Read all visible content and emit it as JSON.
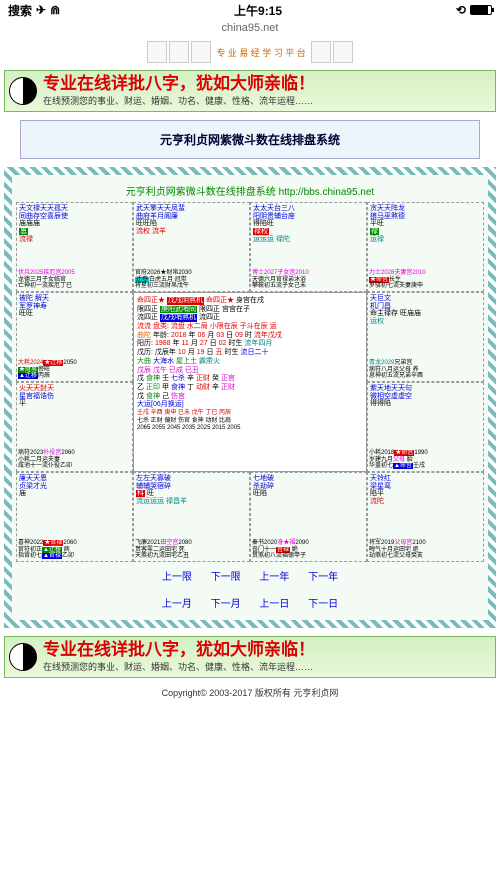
{
  "status": {
    "search": "搜索",
    "time": "上午9:15",
    "airplane": "✈",
    "wifi": "⟟"
  },
  "url": "china95.net",
  "banner": {
    "title": "专业在线详批八字，犹如大师亲临！",
    "sub": "在线预测您的事业、财运、婚姻、功名、健康、性格、流年运程……"
  },
  "strip_label": "专 业 易 经 学 习 平 台",
  "system_title": "元亨利贞网紫微斗数在线排盘系统",
  "chart_header": "元亨利贞网紫微斗数在线排盘系统 http://bbs.china95.net",
  "cells": {
    "p0": {
      "stars": "天文禄天天孤天",
      "s2": "同曲存空喜辰使",
      "s3": "庙庙庙",
      "badge": "恩",
      "tag": "流禄",
      "line": "伏兵2025疾厄宫2005",
      "l2": "龙德三月子女临官",
      "l3": "亡神初一流疾厄丁巳"
    },
    "p1": {
      "stars": "武天擎天天凤蜚",
      "s2": "曲府羊月阁廉",
      "s3": "旺旺陷",
      "tag": "流权 流羊",
      "line": "官府2026★财帛2030",
      "l2": "白虎五月迁夺冠带",
      "l3": "将星初三流财帛戊午"
    },
    "p2": {
      "stars": "太太天台三八",
      "s2": "阳阴贵辅台座",
      "s3": "得陷旺",
      "badge": "禄权",
      "tag": "运运运 禄陀",
      "line": "博士2027子女宫2010",
      "l2": "天德六月官禄弟沐浴",
      "l3": "攀鞍初五流子女己未",
      "land": "身宫▲官禄"
    },
    "p3": {
      "stars": "贪天天阵龙",
      "s2": "狼马巫煞德",
      "s3": "平旺",
      "badge": "禄",
      "tag": "运禄",
      "line": "力士2028夫妻宫2010",
      "l2": "吞客七月★命宫长生",
      "l3": "岁驿初七流夫妻庚申"
    },
    "p4": {
      "stars": "被陀 解天",
      "s2": "军罗神寿",
      "s3": "旺旺",
      "line": "大耗2024★迁移2050",
      "l2": "大耗三月★财帛帝旺",
      "l3": "月煞十二▲迁移丙辰"
    },
    "p5": {
      "stars": "天巨文",
      "s2": "机门昌",
      "s3": "命主禄存 旺庙庙",
      "s4": "身主文昌",
      "tag": "运权",
      "line": "青龙2029兄弟宫",
      "l2": "病符八月运父母 养",
      "l3": "息神初五流兄弟辛酉"
    },
    "p6": {
      "stars": "火天天封天",
      "s2": "星官福诰伤",
      "s3": "平",
      "tag": "大曲 大海水 食神 正官",
      "line": "戊辰 戊午",
      "l2": "乙正印",
      "ext": "戊 食神"
    },
    "p7": {
      "stars": "紫天地天天句",
      "s2": "微相空虚虚空",
      "s3": "得得陷",
      "tag": "屋上土 日主 霹雳火 伤官",
      "line": "已成 已丑",
      "l2": "壬七杀 辛正财 癸正官",
      "l3": "甲食神 丁动财 辛正财",
      "ext": "戊 食神 己 伤官"
    },
    "p8": {
      "stars": "廉天天恩",
      "s2": "贞梁才光",
      "s3": "庙",
      "line": "喜神2022★官禄2060",
      "l2": "官符初正▲迁移 病",
      "l3": "指背初七▲官禄乙卯"
    },
    "p9": {
      "stars": "左左天寡破",
      "s2": "辅辅哭宿碎",
      "s3": "科 旺",
      "tag": "流运运运 禄昌羊",
      "line": "飞廉2021田空宫2080",
      "l2": "贳客零二运田宅 死",
      "l3": "天煞初九流田宅乙丑"
    },
    "p10": {
      "stars": "七地破",
      "s2": "杀劫碎",
      "s3": "旺陷",
      "line": "秦书2020身★福2090",
      "l2": "丧门十一宫禄 絶",
      "l3": "丧门十一★福 墓",
      "ext": "贯煞初八流福德甲子"
    },
    "p11": {
      "stars": "天铃红",
      "s2": "梁星鸾",
      "s3": "陷平",
      "tag": "流陀",
      "line": "将军2019父母宫2100",
      "l2": "晦气十月运田宅 绝",
      "l3": "劫煞初七流父母癸亥"
    }
  },
  "center": {
    "r1": "命四正★ 戊戌阴煞机 命四正★ 身宫在戌",
    "r2": "限四正 庚阳武哨同 限四正 宫宫在子",
    "r3": "流四正 戊戌哨煞机 流四正",
    "r4": "流流 盘类: 流盘 水二局 小限在辰 子斗在辰 运",
    "r5": "曲陀 年龄: 2018年06月03日09时 流年戊戌 恩",
    "r6": "阳历: 1988年11月27日02时生 流年四月",
    "r7": "戊历: 戊辰年10月19日丑时生 流日二十",
    "r8": "大运[06月换运]",
    "r9": "病符2023扑役宫2060 壬戌 辛酉 庚申 已未 戊午 丁巳 丙辰",
    "r10": "小耗二月运夫妻 七杀 正财 偏财 伤官 食神 动财 比肩",
    "r11": "咸池十一流仆役乙卯 2065 2055 2045 2035 2025 2015 2005",
    "r12": "小耗2018★命宫1990 岁建九月父母 胎 华盖初七▲命宫壬戌"
  },
  "nav": {
    "prev_big": "上一限",
    "next_big": "下一限",
    "prev_y": "上一年",
    "next_y": "下一年",
    "prev_m": "上一月",
    "next_m": "下一月",
    "prev_d": "上一日",
    "next_d": "下一日"
  },
  "copyright": "Copyright© 2003-2017 版权所有 元亨利贞网"
}
